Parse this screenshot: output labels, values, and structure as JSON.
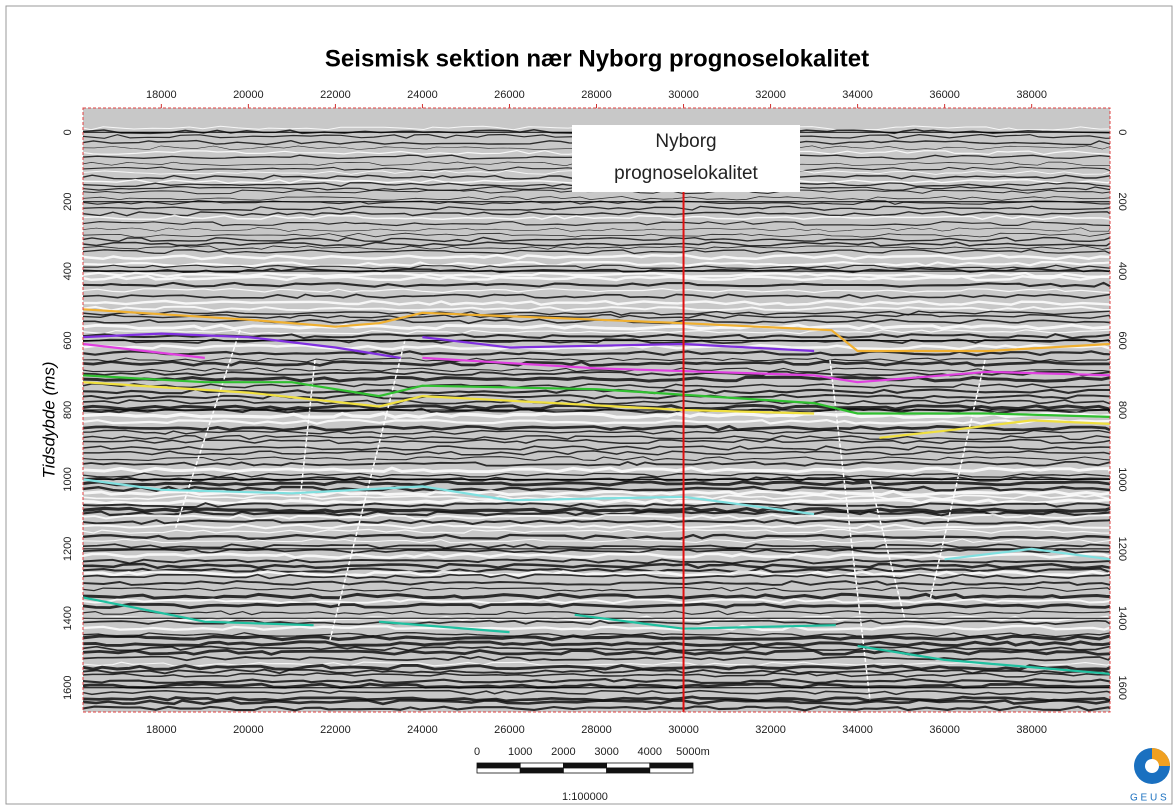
{
  "chart_data": {
    "type": "line",
    "title": "Seismisk sektion nær Nyborg prognoselokalitet",
    "ylabel": "Tidsdybde (ms)",
    "xlim": [
      16200,
      39800
    ],
    "ylim": [
      1670,
      -70
    ],
    "xticks": [
      18000,
      20000,
      22000,
      24000,
      26000,
      28000,
      30000,
      32000,
      34000,
      36000,
      38000
    ],
    "yticks": [
      0,
      200,
      400,
      600,
      800,
      1000,
      1200,
      1400,
      1600
    ],
    "grid": true,
    "marker_x": 30000,
    "marker_color": "#e01010",
    "annotation": {
      "lines": [
        "Nyborg",
        "prognoselokalitet"
      ]
    },
    "series": [
      {
        "color": "#f0b030",
        "x": [
          16200,
          20000,
          22000,
          23000,
          24000,
          28000,
          30000,
          33400,
          34000,
          37000,
          39800
        ],
        "values": [
          510,
          540,
          560,
          550,
          520,
          540,
          550,
          570,
          630,
          630,
          610
        ]
      },
      {
        "color": "#8030e0",
        "x": [
          16200,
          18000,
          20000,
          22000,
          23500,
          null,
          24000,
          26000,
          30000,
          33000
        ],
        "values": [
          590,
          580,
          590,
          620,
          650,
          null,
          590,
          620,
          610,
          630
        ]
      },
      {
        "color": "#e040e0",
        "x": [
          16200,
          19000,
          null,
          24000,
          28000,
          33000,
          34000,
          37000,
          39800
        ],
        "values": [
          610,
          650,
          null,
          650,
          680,
          700,
          720,
          690,
          700
        ]
      },
      {
        "color": "#30c030",
        "x": [
          16200,
          19000,
          21000,
          23000,
          24000,
          28000,
          33000,
          34000,
          37000,
          39800
        ],
        "values": [
          700,
          720,
          720,
          760,
          730,
          740,
          780,
          810,
          810,
          820
        ]
      },
      {
        "color": "#f0e040",
        "x": [
          16200,
          20000,
          23000,
          24000,
          30000,
          33000,
          null,
          34500,
          36000,
          38000,
          39800
        ],
        "values": [
          720,
          750,
          790,
          760,
          800,
          810,
          null,
          880,
          860,
          830,
          840
        ]
      },
      {
        "color": "#80e0e0",
        "x": [
          16200,
          18000,
          21000,
          24000,
          26000,
          30000,
          33000,
          null,
          36000,
          38000,
          39800
        ],
        "values": [
          1000,
          1030,
          1040,
          1020,
          1060,
          1050,
          1100,
          null,
          1230,
          1200,
          1230
        ]
      },
      {
        "color": "#20c0a0",
        "x": [
          16200,
          19000,
          21500,
          null,
          23000,
          26000,
          null,
          27500,
          30000,
          33500,
          null,
          34000,
          36000,
          39800
        ],
        "values": [
          1340,
          1410,
          1420,
          null,
          1410,
          1440,
          null,
          1390,
          1430,
          1420,
          null,
          1480,
          1520,
          1560
        ]
      }
    ],
    "scale_bar": {
      "ticks": [
        0,
        1000,
        2000,
        3000,
        4000,
        {
          "value": 5000,
          "label": "5000m"
        }
      ],
      "ratio": "1:100000"
    },
    "logo": "G E U S"
  }
}
